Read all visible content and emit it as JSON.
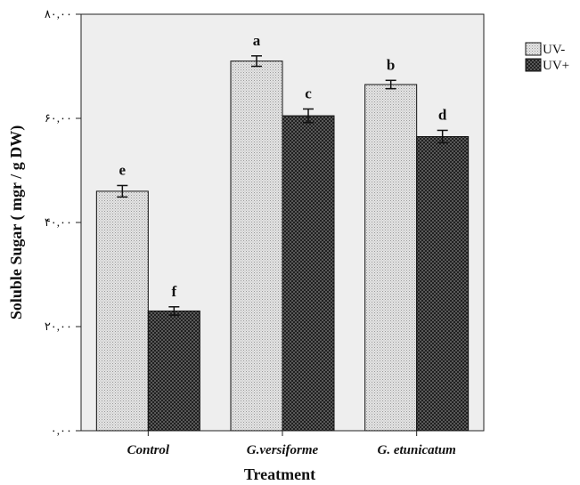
{
  "chart_data": {
    "type": "bar",
    "categories": [
      "Control",
      "G.versiforme",
      "G. etunicatum"
    ],
    "series": [
      {
        "name": "UV-",
        "values": [
          46000,
          71000,
          66500
        ],
        "errors": [
          1100,
          1000,
          800
        ],
        "letters": [
          "e",
          "a",
          "b"
        ],
        "pattern": "light"
      },
      {
        "name": "UV+",
        "values": [
          23000,
          60500,
          56500
        ],
        "errors": [
          800,
          1300,
          1200
        ],
        "letters": [
          "f",
          "c",
          "d"
        ],
        "pattern": "dark"
      }
    ],
    "ylim": [
      0,
      80000
    ],
    "yticks": [
      0,
      20000,
      40000,
      60000,
      80000
    ],
    "ytick_labels": [
      "۰,۰۰",
      "۲۰,۰۰",
      "۴۰,۰۰",
      "۶۰,۰۰",
      "۸۰,۰۰"
    ],
    "xlabel": "Treatment",
    "ylabel": "Soluble Sugar ( mgr / g DW)",
    "legend_position": "top-right",
    "plot_background": "#eeeeee"
  }
}
